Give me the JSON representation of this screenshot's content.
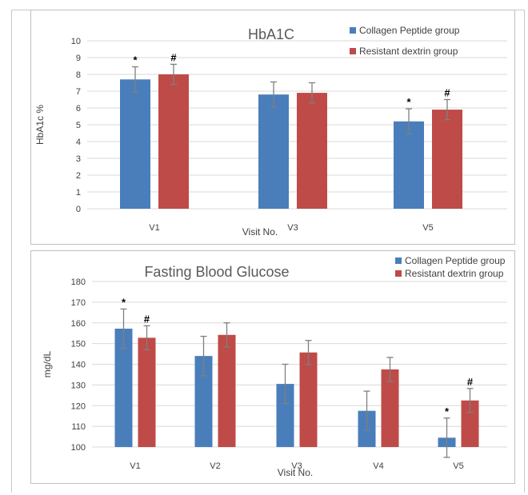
{
  "chart_data": [
    {
      "type": "bar",
      "title": "HbA1C",
      "xlabel": "Visit No.",
      "ylabel": "HbA1c %",
      "ylim": [
        0,
        10
      ],
      "yticks": [
        0,
        1,
        2,
        3,
        4,
        5,
        6,
        7,
        8,
        9,
        10
      ],
      "categories": [
        "V1",
        "V3",
        "V5"
      ],
      "series": [
        {
          "name": "Collagen Peptide group",
          "color": "#4a7ebb",
          "values": [
            7.7,
            6.8,
            5.2
          ],
          "errors": [
            0.75,
            0.75,
            0.75
          ],
          "markers": [
            "*",
            "",
            "*"
          ]
        },
        {
          "name": "Resistant dextrin group",
          "color": "#be4b48",
          "values": [
            8.0,
            6.9,
            5.9
          ],
          "errors": [
            0.6,
            0.6,
            0.6
          ],
          "markers": [
            "#",
            "",
            "#"
          ]
        }
      ],
      "grid": true,
      "legend": "top-right"
    },
    {
      "type": "bar",
      "title": "Fasting Blood Glucose",
      "xlabel": "Visit No.",
      "ylabel": "mg/dL",
      "ylim": [
        100,
        180
      ],
      "yticks": [
        100,
        110,
        120,
        130,
        140,
        150,
        160,
        170,
        180
      ],
      "categories": [
        "V1",
        "V2",
        "V3",
        "V4",
        "V5"
      ],
      "series": [
        {
          "name": "Collagen Peptide group",
          "color": "#4a7ebb",
          "values": [
            157.2,
            144,
            130.5,
            117.5,
            104.5
          ],
          "errors": [
            9.5,
            9.5,
            9.5,
            9.5,
            9.5
          ],
          "markers": [
            "*",
            "",
            "",
            "",
            "*"
          ]
        },
        {
          "name": "Resistant dextrin group",
          "color": "#be4b48",
          "values": [
            152.8,
            154.2,
            145.7,
            137.5,
            122.5
          ],
          "errors": [
            5.8,
            5.8,
            5.8,
            5.8,
            5.8
          ],
          "markers": [
            "#",
            "",
            "",
            "",
            "#"
          ]
        }
      ],
      "grid": true,
      "legend": "top-right"
    }
  ]
}
